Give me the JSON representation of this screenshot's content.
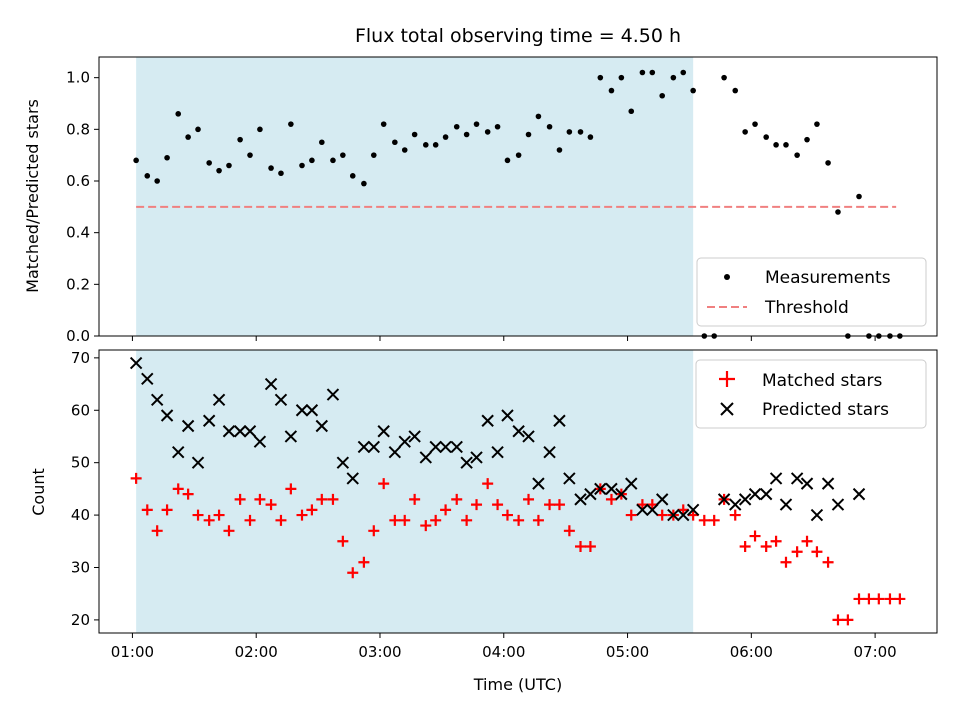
{
  "chart_data": {
    "type": "scatter",
    "title": "Flux total observing time = 4.50 h",
    "xlabel": "Time (UTC)",
    "x_ticks": [
      "01:00",
      "02:00",
      "03:00",
      "04:00",
      "05:00",
      "06:00",
      "07:00"
    ],
    "x_range_hours": [
      0.73,
      7.5
    ],
    "shaded_span_hours": [
      1.03,
      5.53
    ],
    "shade_color": "#add8e6",
    "top": {
      "ylabel": "Matched/Predicted stars",
      "ylim": [
        0,
        1.08
      ],
      "y_ticks": [
        "0.0",
        "0.2",
        "0.4",
        "0.6",
        "0.8",
        "1.0"
      ],
      "threshold": {
        "name": "Threshold",
        "value": 0.5,
        "x_range": [
          1.03,
          7.17
        ],
        "color": "#f08080"
      },
      "series": [
        {
          "name": "Measurements",
          "color": "#000000",
          "points": [
            [
              1.03,
              0.68
            ],
            [
              1.12,
              0.62
            ],
            [
              1.2,
              0.6
            ],
            [
              1.28,
              0.69
            ],
            [
              1.37,
              0.86
            ],
            [
              1.45,
              0.77
            ],
            [
              1.53,
              0.8
            ],
            [
              1.62,
              0.67
            ],
            [
              1.7,
              0.64
            ],
            [
              1.78,
              0.66
            ],
            [
              1.87,
              0.76
            ],
            [
              1.95,
              0.7
            ],
            [
              2.03,
              0.8
            ],
            [
              2.12,
              0.65
            ],
            [
              2.2,
              0.63
            ],
            [
              2.28,
              0.82
            ],
            [
              2.37,
              0.66
            ],
            [
              2.45,
              0.68
            ],
            [
              2.53,
              0.75
            ],
            [
              2.62,
              0.68
            ],
            [
              2.7,
              0.7
            ],
            [
              2.78,
              0.62
            ],
            [
              2.87,
              0.59
            ],
            [
              2.95,
              0.7
            ],
            [
              3.03,
              0.82
            ],
            [
              3.12,
              0.75
            ],
            [
              3.2,
              0.72
            ],
            [
              3.28,
              0.78
            ],
            [
              3.37,
              0.74
            ],
            [
              3.45,
              0.74
            ],
            [
              3.53,
              0.77
            ],
            [
              3.62,
              0.81
            ],
            [
              3.7,
              0.78
            ],
            [
              3.78,
              0.82
            ],
            [
              3.87,
              0.79
            ],
            [
              3.95,
              0.81
            ],
            [
              4.03,
              0.68
            ],
            [
              4.12,
              0.7
            ],
            [
              4.2,
              0.78
            ],
            [
              4.28,
              0.85
            ],
            [
              4.37,
              0.81
            ],
            [
              4.45,
              0.72
            ],
            [
              4.53,
              0.79
            ],
            [
              4.62,
              0.79
            ],
            [
              4.7,
              0.77
            ],
            [
              4.78,
              1.0
            ],
            [
              4.87,
              0.95
            ],
            [
              4.95,
              1.0
            ],
            [
              5.03,
              0.87
            ],
            [
              5.12,
              1.02
            ],
            [
              5.2,
              1.02
            ],
            [
              5.28,
              0.93
            ],
            [
              5.37,
              1.0
            ],
            [
              5.45,
              1.02
            ],
            [
              5.53,
              0.95
            ],
            [
              5.62,
              0.0
            ],
            [
              5.7,
              0.0
            ],
            [
              5.78,
              1.0
            ],
            [
              5.87,
              0.95
            ],
            [
              5.95,
              0.79
            ],
            [
              6.03,
              0.82
            ],
            [
              6.12,
              0.77
            ],
            [
              6.2,
              0.74
            ],
            [
              6.28,
              0.74
            ],
            [
              6.37,
              0.7
            ],
            [
              6.45,
              0.76
            ],
            [
              6.53,
              0.82
            ],
            [
              6.62,
              0.67
            ],
            [
              6.7,
              0.48
            ],
            [
              6.78,
              0.0
            ],
            [
              6.87,
              0.54
            ],
            [
              6.95,
              0.0
            ],
            [
              7.03,
              0.0
            ],
            [
              7.12,
              0.0
            ],
            [
              7.2,
              0.0
            ]
          ]
        }
      ],
      "legend": [
        "Measurements",
        "Threshold"
      ],
      "legend_position": "lower-right"
    },
    "bottom": {
      "ylabel": "Count",
      "ylim": [
        17.5,
        71.5
      ],
      "y_ticks": [
        "20",
        "30",
        "40",
        "50",
        "60",
        "70"
      ],
      "series": [
        {
          "name": "Matched stars",
          "marker": "+",
          "color": "#ff0000",
          "points": [
            [
              1.03,
              47
            ],
            [
              1.12,
              41
            ],
            [
              1.2,
              37
            ],
            [
              1.28,
              41
            ],
            [
              1.37,
              45
            ],
            [
              1.45,
              44
            ],
            [
              1.53,
              40
            ],
            [
              1.62,
              39
            ],
            [
              1.7,
              40
            ],
            [
              1.78,
              37
            ],
            [
              1.87,
              43
            ],
            [
              1.95,
              39
            ],
            [
              2.03,
              43
            ],
            [
              2.12,
              42
            ],
            [
              2.2,
              39
            ],
            [
              2.28,
              45
            ],
            [
              2.37,
              40
            ],
            [
              2.45,
              41
            ],
            [
              2.53,
              43
            ],
            [
              2.62,
              43
            ],
            [
              2.7,
              35
            ],
            [
              2.78,
              29
            ],
            [
              2.87,
              31
            ],
            [
              2.95,
              37
            ],
            [
              3.03,
              46
            ],
            [
              3.12,
              39
            ],
            [
              3.2,
              39
            ],
            [
              3.28,
              43
            ],
            [
              3.37,
              38
            ],
            [
              3.45,
              39
            ],
            [
              3.53,
              41
            ],
            [
              3.62,
              43
            ],
            [
              3.7,
              39
            ],
            [
              3.78,
              42
            ],
            [
              3.87,
              46
            ],
            [
              3.95,
              42
            ],
            [
              4.03,
              40
            ],
            [
              4.12,
              39
            ],
            [
              4.2,
              43
            ],
            [
              4.28,
              39
            ],
            [
              4.37,
              42
            ],
            [
              4.45,
              42
            ],
            [
              4.53,
              37
            ],
            [
              4.62,
              34
            ],
            [
              4.7,
              34
            ],
            [
              4.78,
              45
            ],
            [
              4.87,
              43
            ],
            [
              4.95,
              44
            ],
            [
              5.03,
              40
            ],
            [
              5.12,
              42
            ],
            [
              5.2,
              42
            ],
            [
              5.28,
              40
            ],
            [
              5.37,
              40
            ],
            [
              5.45,
              41
            ],
            [
              5.53,
              40
            ],
            [
              5.62,
              39
            ],
            [
              5.7,
              39
            ],
            [
              5.78,
              43
            ],
            [
              5.87,
              40
            ],
            [
              5.95,
              34
            ],
            [
              6.03,
              36
            ],
            [
              6.12,
              34
            ],
            [
              6.2,
              35
            ],
            [
              6.28,
              31
            ],
            [
              6.37,
              33
            ],
            [
              6.45,
              35
            ],
            [
              6.53,
              33
            ],
            [
              6.62,
              31
            ],
            [
              6.7,
              20
            ],
            [
              6.78,
              20
            ],
            [
              6.87,
              24
            ],
            [
              6.95,
              24
            ],
            [
              7.03,
              24
            ],
            [
              7.12,
              24
            ],
            [
              7.2,
              24
            ]
          ]
        },
        {
          "name": "Predicted stars",
          "marker": "x",
          "color": "#000000",
          "points": [
            [
              1.03,
              69
            ],
            [
              1.12,
              66
            ],
            [
              1.2,
              62
            ],
            [
              1.28,
              59
            ],
            [
              1.37,
              52
            ],
            [
              1.45,
              57
            ],
            [
              1.53,
              50
            ],
            [
              1.62,
              58
            ],
            [
              1.7,
              62
            ],
            [
              1.78,
              56
            ],
            [
              1.87,
              56
            ],
            [
              1.95,
              56
            ],
            [
              2.03,
              54
            ],
            [
              2.12,
              65
            ],
            [
              2.2,
              62
            ],
            [
              2.28,
              55
            ],
            [
              2.37,
              60
            ],
            [
              2.45,
              60
            ],
            [
              2.53,
              57
            ],
            [
              2.62,
              63
            ],
            [
              2.7,
              50
            ],
            [
              2.78,
              47
            ],
            [
              2.87,
              53
            ],
            [
              2.95,
              53
            ],
            [
              3.03,
              56
            ],
            [
              3.12,
              52
            ],
            [
              3.2,
              54
            ],
            [
              3.28,
              55
            ],
            [
              3.37,
              51
            ],
            [
              3.45,
              53
            ],
            [
              3.53,
              53
            ],
            [
              3.62,
              53
            ],
            [
              3.7,
              50
            ],
            [
              3.78,
              51
            ],
            [
              3.87,
              58
            ],
            [
              3.95,
              52
            ],
            [
              4.03,
              59
            ],
            [
              4.12,
              56
            ],
            [
              4.2,
              55
            ],
            [
              4.28,
              46
            ],
            [
              4.37,
              52
            ],
            [
              4.45,
              58
            ],
            [
              4.53,
              47
            ],
            [
              4.62,
              43
            ],
            [
              4.7,
              44
            ],
            [
              4.78,
              45
            ],
            [
              4.87,
              45
            ],
            [
              4.95,
              44
            ],
            [
              5.03,
              46
            ],
            [
              5.12,
              41
            ],
            [
              5.2,
              41
            ],
            [
              5.28,
              43
            ],
            [
              5.37,
              40
            ],
            [
              5.45,
              40
            ],
            [
              5.53,
              41
            ],
            [
              5.78,
              43
            ],
            [
              5.87,
              42
            ],
            [
              5.95,
              43
            ],
            [
              6.03,
              44
            ],
            [
              6.12,
              44
            ],
            [
              6.2,
              47
            ],
            [
              6.28,
              42
            ],
            [
              6.37,
              47
            ],
            [
              6.45,
              46
            ],
            [
              6.53,
              40
            ],
            [
              6.62,
              46
            ],
            [
              6.7,
              42
            ],
            [
              6.87,
              44
            ]
          ]
        }
      ],
      "legend": [
        "Matched stars",
        "Predicted stars"
      ],
      "legend_position": "upper-right"
    }
  }
}
